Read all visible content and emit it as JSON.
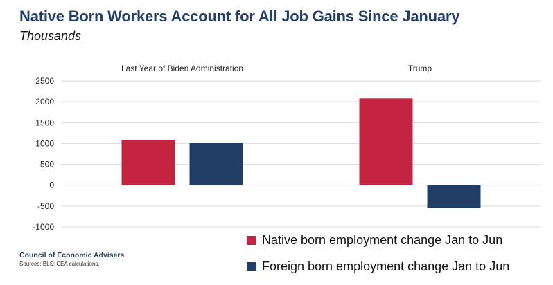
{
  "header": {
    "title": "Native Born Workers Account for All Job Gains Since January",
    "subtitle": "Thousands"
  },
  "chart_data": {
    "type": "bar",
    "groups": [
      "Last Year of Biden Administration",
      "Trump"
    ],
    "series": [
      {
        "name": "Native born employment change Jan to Jun",
        "color": "#c3243f",
        "values": [
          1090,
          2080
        ]
      },
      {
        "name": "Foreign born employment change Jan to Jun",
        "color": "#213f66",
        "values": [
          1020,
          -550
        ]
      }
    ],
    "ylim": [
      -1000,
      2500
    ],
    "yticks": [
      2500,
      2000,
      1500,
      1000,
      500,
      0,
      -500,
      -1000
    ],
    "grid": true,
    "legend_position": "bottom-right"
  },
  "footer": {
    "organization": "Council of Economic Advisers",
    "sources": "Sources: BLS; CEA calculations."
  }
}
